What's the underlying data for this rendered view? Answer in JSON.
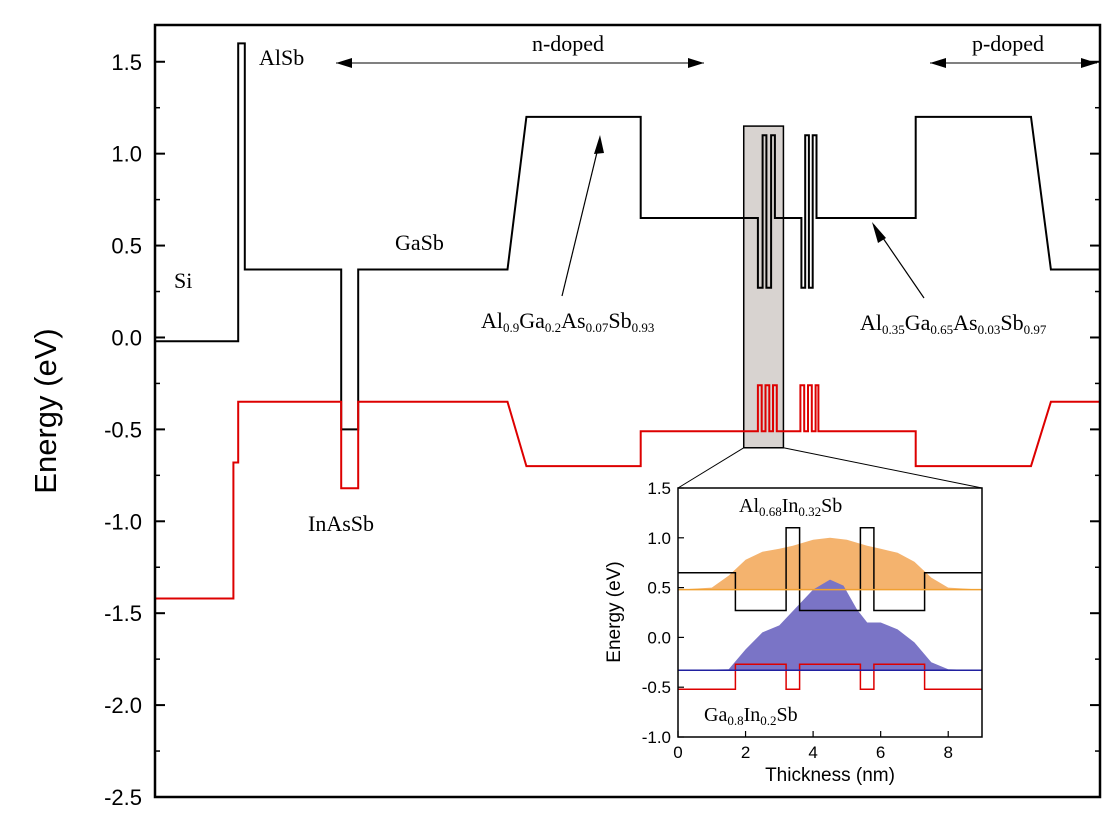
{
  "chart_data": [
    {
      "type": "line",
      "title": "",
      "xlabel": "",
      "ylabel": "Energy (eV)",
      "xlim": [
        0,
        100
      ],
      "ylim": [
        -2.5,
        1.7
      ],
      "x_ticks_shown": false,
      "y_ticks": [
        "1.5",
        "1.0",
        "0.5",
        "0.0",
        "-0.5",
        "-1.0",
        "-1.5",
        "-2.0",
        "-2.5"
      ],
      "y_tick_values": [
        1.5,
        1.0,
        0.5,
        0.0,
        -0.5,
        -1.0,
        -1.5,
        -2.0,
        -2.5
      ],
      "series": [
        {
          "name": "",
          "color": "#000000",
          "points": [
            [
              0,
              -0.02
            ],
            [
              8.8,
              -0.02
            ],
            [
              8.8,
              1.6
            ],
            [
              9.5,
              1.6
            ],
            [
              9.5,
              0.37
            ],
            [
              19.7,
              0.37
            ],
            [
              19.7,
              -0.5
            ],
            [
              21.5,
              -0.5
            ],
            [
              21.5,
              0.37
            ],
            [
              37.3,
              0.37
            ],
            [
              39.3,
              1.2
            ],
            [
              51.4,
              1.2
            ],
            [
              51.4,
              0.65
            ],
            [
              63.8,
              0.65
            ],
            [
              63.8,
              0.27
            ],
            [
              64.3,
              0.27
            ],
            [
              64.3,
              1.1
            ],
            [
              64.7,
              1.1
            ],
            [
              64.7,
              0.27
            ],
            [
              65.2,
              0.27
            ],
            [
              65.2,
              1.1
            ],
            [
              65.6,
              1.1
            ],
            [
              65.6,
              0.65
            ],
            [
              68.4,
              0.65
            ],
            [
              68.4,
              0.27
            ],
            [
              68.8,
              0.27
            ],
            [
              68.8,
              1.1
            ],
            [
              69.2,
              1.1
            ],
            [
              69.2,
              0.27
            ],
            [
              69.6,
              0.27
            ],
            [
              69.6,
              1.1
            ],
            [
              70.0,
              1.1
            ],
            [
              70.0,
              0.65
            ],
            [
              80.5,
              0.65
            ],
            [
              80.5,
              1.2
            ],
            [
              92.7,
              1.2
            ],
            [
              94.8,
              0.37
            ],
            [
              100,
              0.37
            ]
          ]
        },
        {
          "name": "",
          "color": "#dd0000",
          "points": [
            [
              0,
              -1.42
            ],
            [
              8.3,
              -1.42
            ],
            [
              8.3,
              -0.68
            ],
            [
              8.8,
              -0.68
            ],
            [
              8.8,
              -0.35
            ],
            [
              19.7,
              -0.35
            ],
            [
              19.7,
              -0.82
            ],
            [
              21.5,
              -0.82
            ],
            [
              21.5,
              -0.35
            ],
            [
              37.3,
              -0.35
            ],
            [
              39.3,
              -0.7
            ],
            [
              51.4,
              -0.7
            ],
            [
              51.4,
              -0.51
            ],
            [
              63.8,
              -0.51
            ],
            [
              63.8,
              -0.26
            ],
            [
              64.2,
              -0.26
            ],
            [
              64.2,
              -0.51
            ],
            [
              64.6,
              -0.51
            ],
            [
              64.6,
              -0.26
            ],
            [
              65.0,
              -0.26
            ],
            [
              65.0,
              -0.51
            ],
            [
              65.4,
              -0.51
            ],
            [
              65.4,
              -0.26
            ],
            [
              65.8,
              -0.26
            ],
            [
              65.8,
              -0.51
            ],
            [
              68.3,
              -0.51
            ],
            [
              68.3,
              -0.26
            ],
            [
              68.7,
              -0.26
            ],
            [
              68.7,
              -0.51
            ],
            [
              69.1,
              -0.51
            ],
            [
              69.1,
              -0.26
            ],
            [
              69.5,
              -0.26
            ],
            [
              69.5,
              -0.51
            ],
            [
              69.9,
              -0.51
            ],
            [
              69.9,
              -0.26
            ],
            [
              70.2,
              -0.26
            ],
            [
              70.2,
              -0.51
            ],
            [
              80.5,
              -0.51
            ],
            [
              80.5,
              -0.7
            ],
            [
              92.7,
              -0.7
            ],
            [
              94.8,
              -0.35
            ],
            [
              100,
              -0.35
            ]
          ]
        }
      ],
      "highlight_region": {
        "x": [
          62.3,
          66.5
        ],
        "y": [
          -0.6,
          1.15
        ],
        "color": "#d8d3d0"
      },
      "annotations": {
        "si": "Si",
        "alsb": "AlSb",
        "gasb": "GaSb",
        "inassb": "InAsSb",
        "n_doped": "n-doped",
        "p_doped": "p-doped",
        "barrier1": {
          "parts": [
            [
              "Al",
              ""
            ],
            [
              "0.9",
              "sub"
            ],
            [
              "Ga",
              ""
            ],
            [
              "0.2",
              "sub"
            ],
            [
              "As",
              ""
            ],
            [
              "0.07",
              "sub"
            ],
            [
              "Sb",
              ""
            ],
            [
              "0.93",
              "sub"
            ]
          ]
        },
        "barrier2": {
          "parts": [
            [
              "Al",
              ""
            ],
            [
              "0.35",
              "sub"
            ],
            [
              "Ga",
              ""
            ],
            [
              "0.65",
              "sub"
            ],
            [
              "As",
              ""
            ],
            [
              "0.03",
              "sub"
            ],
            [
              "Sb",
              ""
            ],
            [
              "0.97",
              "sub"
            ]
          ]
        }
      }
    },
    {
      "type": "area",
      "title": "",
      "xlabel": "Thickness (nm)",
      "ylabel": "Energy (eV)",
      "xlim": [
        0,
        9
      ],
      "ylim": [
        -1.0,
        1.5
      ],
      "x_ticks": [
        "0",
        "2",
        "4",
        "6",
        "8"
      ],
      "x_tick_values": [
        0,
        2,
        4,
        6,
        8
      ],
      "y_ticks": [
        "1.5",
        "1.0",
        "0.5",
        "0.0",
        "-0.5",
        "-1.0"
      ],
      "y_tick_values": [
        1.5,
        1.0,
        0.5,
        0.0,
        -0.5,
        -1.0
      ],
      "series": [
        {
          "name": "",
          "kind": "line",
          "color": "#000000",
          "points": [
            [
              0,
              0.65
            ],
            [
              1.7,
              0.65
            ],
            [
              1.7,
              0.27
            ],
            [
              3.2,
              0.27
            ],
            [
              3.2,
              1.1
            ],
            [
              3.6,
              1.1
            ],
            [
              3.6,
              0.27
            ],
            [
              5.4,
              0.27
            ],
            [
              5.4,
              1.1
            ],
            [
              5.8,
              1.1
            ],
            [
              5.8,
              0.27
            ],
            [
              7.3,
              0.27
            ],
            [
              7.3,
              0.65
            ],
            [
              9,
              0.65
            ]
          ]
        },
        {
          "name": "",
          "kind": "line",
          "color": "#dd0000",
          "points": [
            [
              0,
              -0.52
            ],
            [
              1.7,
              -0.52
            ],
            [
              1.7,
              -0.27
            ],
            [
              3.2,
              -0.27
            ],
            [
              3.2,
              -0.52
            ],
            [
              3.6,
              -0.52
            ],
            [
              3.6,
              -0.27
            ],
            [
              5.4,
              -0.27
            ],
            [
              5.4,
              -0.52
            ],
            [
              5.8,
              -0.52
            ],
            [
              5.8,
              -0.27
            ],
            [
              7.3,
              -0.27
            ],
            [
              7.3,
              -0.52
            ],
            [
              9,
              -0.52
            ]
          ]
        },
        {
          "name": "",
          "kind": "area",
          "color": "#f4b36e",
          "baseline": 0.48,
          "points": [
            [
              0,
              0.48
            ],
            [
              1.0,
              0.5
            ],
            [
              1.5,
              0.62
            ],
            [
              2.0,
              0.78
            ],
            [
              2.5,
              0.86
            ],
            [
              3.0,
              0.89
            ],
            [
              3.4,
              0.92
            ],
            [
              4.0,
              0.98
            ],
            [
              4.5,
              1.0
            ],
            [
              5.0,
              0.98
            ],
            [
              5.6,
              0.92
            ],
            [
              6.0,
              0.89
            ],
            [
              6.5,
              0.85
            ],
            [
              7.0,
              0.76
            ],
            [
              7.5,
              0.6
            ],
            [
              8.0,
              0.5
            ],
            [
              9,
              0.48
            ]
          ]
        },
        {
          "name": "",
          "kind": "line",
          "color": "#f0a030",
          "points": [
            [
              0,
              0.48
            ],
            [
              9,
              0.48
            ]
          ]
        },
        {
          "name": "",
          "kind": "area",
          "color": "#7a74c6",
          "baseline": -0.33,
          "points": [
            [
              0,
              -0.33
            ],
            [
              1.5,
              -0.32
            ],
            [
              2.0,
              -0.12
            ],
            [
              2.5,
              0.05
            ],
            [
              3.0,
              0.12
            ],
            [
              3.5,
              0.3
            ],
            [
              4.0,
              0.48
            ],
            [
              4.5,
              0.58
            ],
            [
              4.9,
              0.52
            ],
            [
              5.3,
              0.28
            ],
            [
              5.6,
              0.15
            ],
            [
              6.0,
              0.15
            ],
            [
              6.5,
              0.08
            ],
            [
              7.0,
              -0.05
            ],
            [
              7.5,
              -0.25
            ],
            [
              8.0,
              -0.32
            ],
            [
              9,
              -0.33
            ]
          ]
        },
        {
          "name": "",
          "kind": "line",
          "color": "#2020a0",
          "points": [
            [
              0,
              -0.33
            ],
            [
              9,
              -0.33
            ]
          ]
        }
      ],
      "annotations": {
        "top": {
          "parts": [
            [
              "Al",
              ""
            ],
            [
              "0.68",
              "sub"
            ],
            [
              "In",
              ""
            ],
            [
              "0.32",
              "sub"
            ],
            [
              "Sb",
              ""
            ]
          ]
        },
        "bottom": {
          "parts": [
            [
              "Ga",
              ""
            ],
            [
              "0.8",
              "sub"
            ],
            [
              "In",
              ""
            ],
            [
              "0.2",
              "sub"
            ],
            [
              "Sb",
              ""
            ]
          ]
        }
      }
    }
  ]
}
